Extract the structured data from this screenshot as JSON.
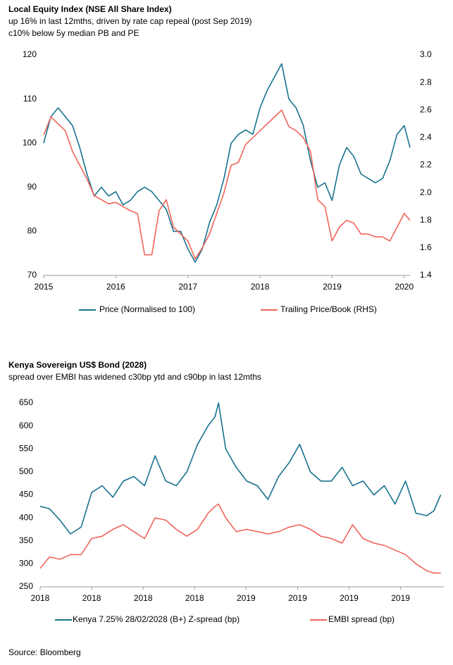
{
  "chart_data": [
    {
      "type": "line",
      "title": "Local Equity Index (NSE All Share Index)",
      "subtitle": [
        "up 16% in last 12mths, driven  by rate cap repeal (post Sep 2019)",
        "c10% below  5y median PB and PE"
      ],
      "x": [
        2015.0,
        2015.1,
        2015.2,
        2015.3,
        2015.4,
        2015.5,
        2015.6,
        2015.7,
        2015.8,
        2015.9,
        2016.0,
        2016.1,
        2016.2,
        2016.3,
        2016.4,
        2016.5,
        2016.6,
        2016.7,
        2016.8,
        2016.9,
        2017.0,
        2017.1,
        2017.2,
        2017.3,
        2017.4,
        2017.5,
        2017.6,
        2017.7,
        2017.8,
        2017.9,
        2018.0,
        2018.1,
        2018.2,
        2018.3,
        2018.4,
        2018.5,
        2018.6,
        2018.7,
        2018.8,
        2018.9,
        2019.0,
        2019.1,
        2019.2,
        2019.3,
        2019.4,
        2019.5,
        2019.6,
        2019.7,
        2019.8,
        2019.9,
        2020.0,
        2020.08
      ],
      "series": [
        {
          "name": "Price (Normalised to 100)",
          "color": "#17728f",
          "values": [
            100,
            106,
            108,
            106,
            104,
            99,
            93,
            88,
            90,
            88,
            89,
            86,
            87,
            89,
            90,
            89,
            87,
            85,
            80,
            80,
            76,
            73,
            76,
            82,
            86,
            92,
            100,
            102,
            103,
            102,
            108,
            112,
            115,
            118,
            110,
            108,
            104,
            96,
            90,
            91,
            87,
            95,
            99,
            97,
            93,
            92,
            91,
            92,
            96,
            102,
            104,
            99
          ]
        },
        {
          "name": "Trailing Price/Book (RHS)",
          "color": "#f0645a",
          "axis": "y2",
          "values": [
            2.42,
            2.55,
            2.5,
            2.45,
            2.3,
            2.2,
            2.1,
            1.98,
            1.95,
            1.92,
            1.93,
            1.9,
            1.87,
            1.85,
            1.55,
            1.55,
            1.87,
            1.95,
            1.75,
            1.7,
            1.65,
            1.52,
            1.6,
            1.7,
            1.85,
            2.0,
            2.2,
            2.22,
            2.35,
            2.4,
            2.45,
            2.5,
            2.55,
            2.6,
            2.48,
            2.45,
            2.4,
            2.3,
            1.95,
            1.9,
            1.65,
            1.75,
            1.8,
            1.78,
            1.7,
            1.7,
            1.68,
            1.68,
            1.65,
            1.75,
            1.85,
            1.8
          ]
        }
      ],
      "xlim": [
        2015,
        2020.08
      ],
      "xticks": [
        2015,
        2016,
        2017,
        2018,
        2019,
        2020
      ],
      "ylim": [
        70,
        120
      ],
      "yticks": [
        70,
        80,
        90,
        100,
        110,
        120
      ],
      "y2lim": [
        1.4,
        3.0
      ],
      "y2ticks": [
        {
          "value": 1.4,
          "label": "1.4"
        },
        {
          "value": 1.6,
          "label": "1.6"
        },
        {
          "value": 1.8,
          "label": "1.8"
        },
        {
          "value": 2.0,
          "label": "2.0"
        },
        {
          "value": 2.2,
          "label": "2.2"
        },
        {
          "value": 2.4,
          "label": "2.4"
        },
        {
          "value": 2.6,
          "label": "2.6"
        },
        {
          "value": 2.8,
          "label": "2.8"
        },
        {
          "value": 3.0,
          "label": "3.0"
        }
      ],
      "grid": false
    },
    {
      "type": "line",
      "title": "Kenya Sovereign US$ Bond (2028)",
      "subtitle": [
        "spread over EMBI has widened c30bp ytd and c90bp in last 12mths"
      ],
      "x": [
        2018.0,
        2018.045,
        2018.096,
        2018.147,
        2018.199,
        2018.25,
        2018.301,
        2018.353,
        2018.404,
        2018.455,
        2018.507,
        2018.558,
        2018.61,
        2018.661,
        2018.712,
        2018.764,
        2018.815,
        2018.849,
        2018.866,
        2018.901,
        2018.952,
        2019.003,
        2019.055,
        2019.106,
        2019.158,
        2019.209,
        2019.26,
        2019.312,
        2019.363,
        2019.414,
        2019.466,
        2019.517,
        2019.568,
        2019.62,
        2019.671,
        2019.723,
        2019.774,
        2019.825,
        2019.877,
        2019.911,
        2019.945
      ],
      "series": [
        {
          "name": "Kenya 7.25% 28/02/2028 (B+) Z-spread (bp)",
          "color": "#17728f",
          "values": [
            425,
            420,
            395,
            365,
            380,
            455,
            470,
            445,
            480,
            490,
            470,
            535,
            480,
            470,
            500,
            560,
            600,
            620,
            650,
            550,
            510,
            480,
            470,
            440,
            490,
            520,
            560,
            500,
            480,
            480,
            510,
            470,
            480,
            450,
            470,
            430,
            480,
            410,
            405,
            415,
            450
          ]
        },
        {
          "name": "EMBI spread (bp)",
          "color": "#f0645a",
          "values": [
            290,
            315,
            310,
            320,
            320,
            355,
            360,
            375,
            385,
            370,
            355,
            400,
            395,
            375,
            360,
            375,
            410,
            425,
            430,
            400,
            370,
            375,
            370,
            365,
            370,
            380,
            385,
            375,
            360,
            355,
            345,
            385,
            355,
            345,
            340,
            330,
            320,
            300,
            285,
            280,
            280
          ]
        }
      ],
      "xlim": [
        2018,
        2019.96
      ],
      "xticks": [
        {
          "value": 2018,
          "label": "2018"
        },
        {
          "value": 2018.25,
          "label": "2018"
        },
        {
          "value": 2018.5,
          "label": "2018"
        },
        {
          "value": 2018.75,
          "label": "2018"
        },
        {
          "value": 2019,
          "label": "2019"
        },
        {
          "value": 2019.25,
          "label": "2019"
        },
        {
          "value": 2019.5,
          "label": "2019"
        },
        {
          "value": 2019.75,
          "label": "2019"
        }
      ],
      "ylim": [
        250,
        650
      ],
      "yticks": [
        250,
        300,
        350,
        400,
        450,
        500,
        550,
        600,
        650
      ],
      "grid": false
    }
  ],
  "source": "Source: Bloomberg"
}
